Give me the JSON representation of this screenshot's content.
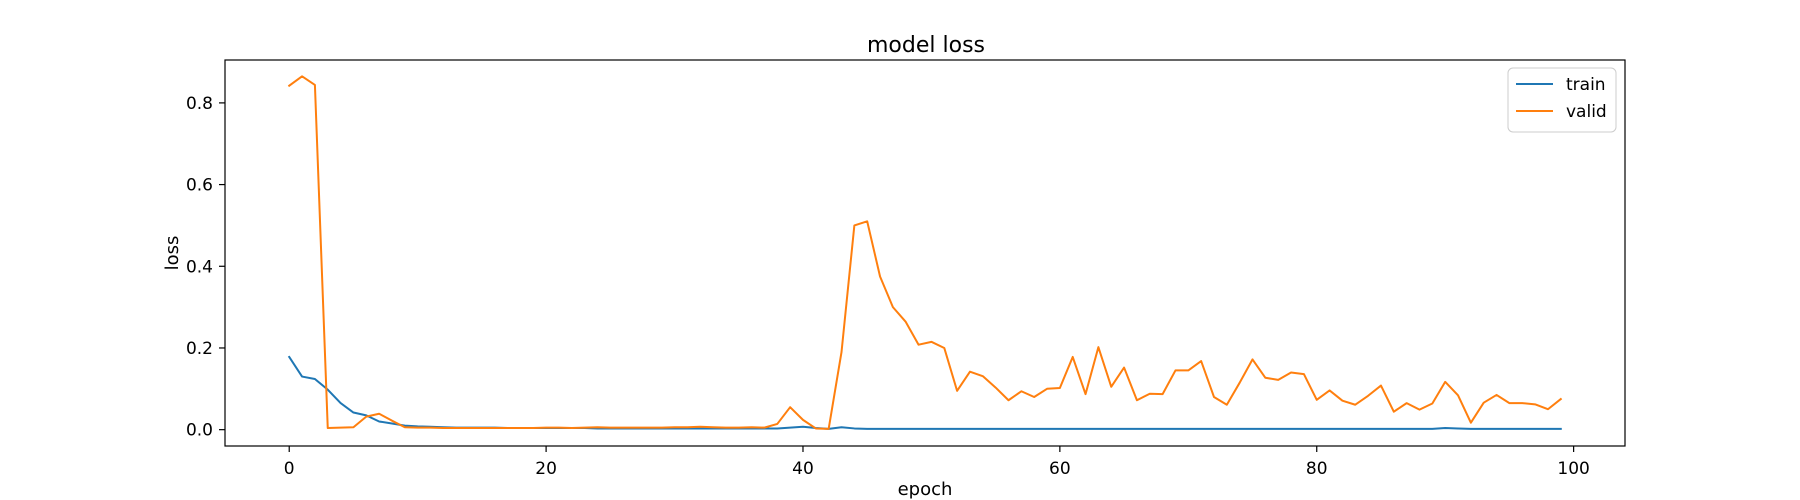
{
  "chart_data": {
    "type": "line",
    "title": "model loss",
    "xlabel": "epoch",
    "ylabel": "loss",
    "xlim": [
      -5,
      104
    ],
    "ylim": [
      -0.04,
      0.905
    ],
    "xticks": [
      0,
      20,
      40,
      60,
      80,
      100
    ],
    "xtick_labels": [
      "0",
      "20",
      "40",
      "60",
      "80",
      "100"
    ],
    "yticks": [
      0.0,
      0.2,
      0.4,
      0.6,
      0.8
    ],
    "ytick_labels": [
      "0.0",
      "0.2",
      "0.4",
      "0.6",
      "0.8"
    ],
    "grid": false,
    "legend_position": "top-right",
    "series": [
      {
        "name": "train",
        "color": "#1f77b4",
        "values": [
          0.178,
          0.13,
          0.124,
          0.098,
          0.065,
          0.042,
          0.035,
          0.02,
          0.015,
          0.01,
          0.008,
          0.007,
          0.006,
          0.005,
          0.005,
          0.005,
          0.005,
          0.004,
          0.004,
          0.004,
          0.004,
          0.004,
          0.004,
          0.004,
          0.003,
          0.003,
          0.003,
          0.003,
          0.003,
          0.003,
          0.003,
          0.003,
          0.003,
          0.003,
          0.003,
          0.003,
          0.003,
          0.003,
          0.003,
          0.005,
          0.007,
          0.004,
          0.002,
          0.006,
          0.003,
          0.002,
          0.002,
          0.002,
          0.002,
          0.002,
          0.002,
          0.002,
          0.002,
          0.002,
          0.002,
          0.002,
          0.002,
          0.002,
          0.002,
          0.002,
          0.002,
          0.002,
          0.002,
          0.002,
          0.002,
          0.002,
          0.002,
          0.002,
          0.002,
          0.002,
          0.002,
          0.002,
          0.002,
          0.002,
          0.002,
          0.002,
          0.002,
          0.002,
          0.002,
          0.002,
          0.002,
          0.002,
          0.002,
          0.002,
          0.002,
          0.002,
          0.002,
          0.002,
          0.002,
          0.002,
          0.004,
          0.003,
          0.002,
          0.002,
          0.002,
          0.002,
          0.002,
          0.002,
          0.002,
          0.002
        ]
      },
      {
        "name": "valid",
        "color": "#ff7f0e",
        "values": [
          0.842,
          0.865,
          0.844,
          0.004,
          0.005,
          0.006,
          0.032,
          0.039,
          0.022,
          0.006,
          0.005,
          0.005,
          0.004,
          0.004,
          0.004,
          0.004,
          0.004,
          0.004,
          0.004,
          0.004,
          0.005,
          0.005,
          0.004,
          0.005,
          0.006,
          0.005,
          0.005,
          0.005,
          0.005,
          0.005,
          0.006,
          0.006,
          0.007,
          0.006,
          0.005,
          0.005,
          0.006,
          0.005,
          0.014,
          0.055,
          0.024,
          0.003,
          0.002,
          0.19,
          0.5,
          0.51,
          0.375,
          0.3,
          0.264,
          0.208,
          0.215,
          0.2,
          0.095,
          0.142,
          0.131,
          0.103,
          0.072,
          0.094,
          0.08,
          0.1,
          0.102,
          0.178,
          0.087,
          0.202,
          0.105,
          0.152,
          0.072,
          0.088,
          0.087,
          0.145,
          0.145,
          0.168,
          0.08,
          0.061,
          0.115,
          0.172,
          0.127,
          0.122,
          0.14,
          0.136,
          0.073,
          0.096,
          0.071,
          0.061,
          0.083,
          0.108,
          0.044,
          0.065,
          0.049,
          0.064,
          0.117,
          0.084,
          0.017,
          0.066,
          0.085,
          0.065,
          0.065,
          0.062,
          0.05,
          0.075
        ]
      }
    ]
  }
}
